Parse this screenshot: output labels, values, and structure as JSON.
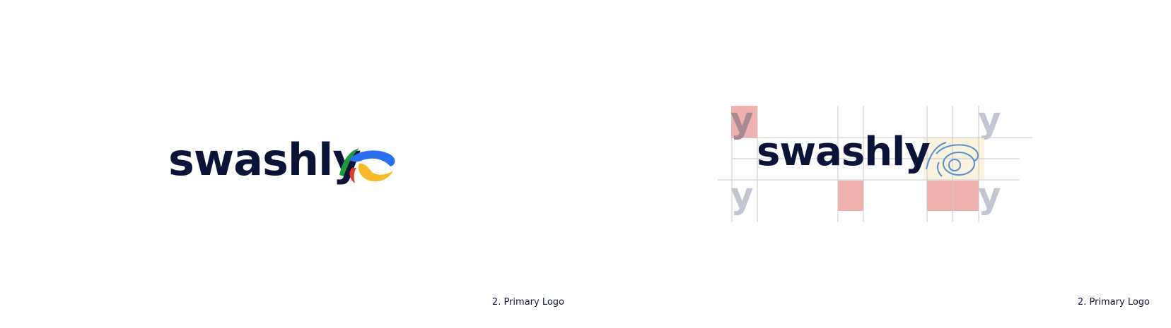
{
  "brand": {
    "wordmark": "swashly",
    "navy": "#0b1438",
    "symbol_colors": {
      "green": "#1e9b3a",
      "blue": "#2a6ff0",
      "red": "#e03a2c",
      "yellow": "#f9b82a"
    }
  },
  "panels": [
    {
      "caption": "2. Primary Logo"
    },
    {
      "caption": "2. Primary Logo",
      "ghost_glyph": "y",
      "clearspace_color": "#efb0b0",
      "grid_line_color": "#c9c9c9"
    }
  ]
}
